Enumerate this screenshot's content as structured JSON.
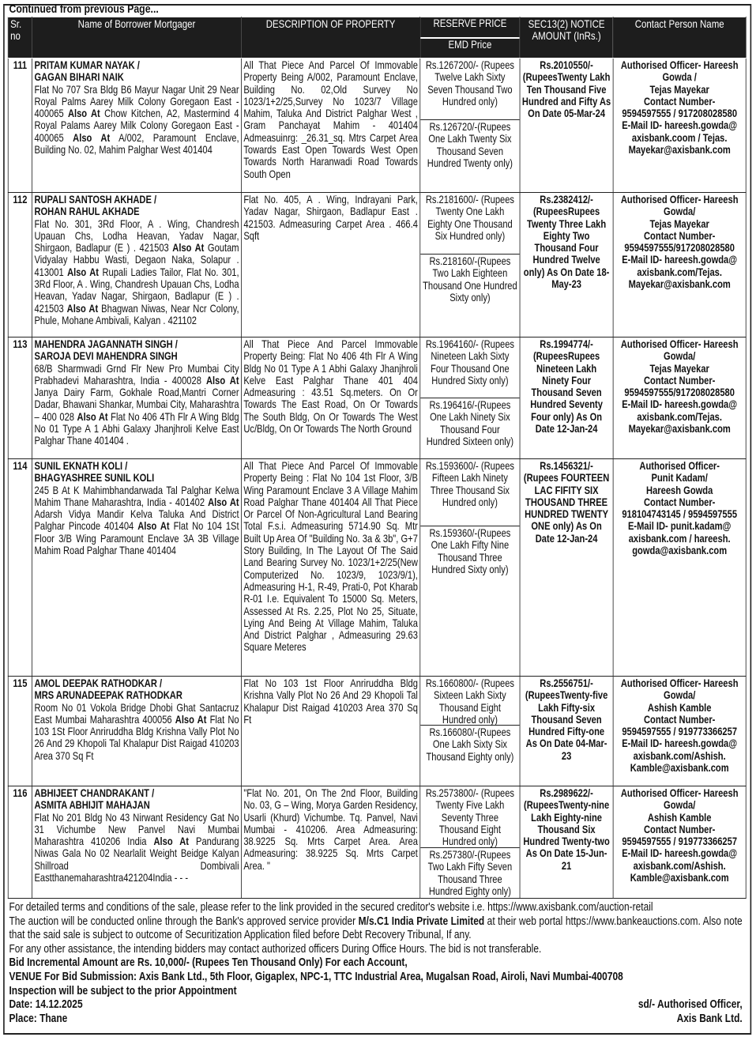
{
  "heading": "Continued from previous Page...",
  "columns": {
    "sr": "Sr. no",
    "name": "Name of Borrower Mortgager",
    "description": "DESCRIPTION OF PROPERTY",
    "reserve": "RESERVE PRICE",
    "emd": "EMD Price",
    "notice": "SEC13(2) NOTICE AMOUNT (InRs.)",
    "contact": "Contact Person Name"
  },
  "rows": [
    {
      "sr": "111",
      "names": [
        "PRITAM KUMAR  NAYAK /",
        "GAGAN BIHARI NAIK"
      ],
      "address": [
        {
          "t": "Flat No 707 Sra Bldg B6 Mayur Nagar Unit 29 Near Royal Palms Aarey Milk Colony Goregaon East - 400065 "
        },
        {
          "t": "Also At",
          "b": true
        },
        {
          "t": " Chow Kitchen, A2, Mastermind 4 Royal Palams Aarey Milk Colony Goregaon East - 400065 "
        },
        {
          "t": "Also At",
          "b": true
        },
        {
          "t": " A/002, Paramount Enclave, Building No. 02, Mahim Palghar West 401404"
        }
      ],
      "description": "All That Piece And Parcel Of Immovable Property Being A/002, Paramount Enclave, Building No. 02,Old Survey No 1023/1+2/25,Survey No 1023/7 Village Mahim, Taluka And District Palghar West , Gram Panchayat Mahim - 401404 Admeasuinrg: _26.31_sq. Mtrs Carpet Area Towards East Open Towards West Open Towards North Haranwadi Road Towards South Open",
      "reserve": "Rs.1267200/- (Rupees Twelve Lakh Sixty Seven Thousand Two Hundred only)",
      "emd": "Rs.126720/-(Rupees One Lakh Twenty Six Thousand Seven Hundred Twenty only)",
      "notice": "Rs.2010550/- (RupeesTwenty Lakh Ten Thousand Five Hundred and Fifty As On Date 05-Mar-24",
      "contact": [
        "Authorised Officer- Hareesh",
        "Gowda /",
        "Tejas Mayekar",
        "Contact Number-",
        "9594597555 / 917208028580",
        "E-Mail ID- hareesh.gowda@",
        "axisbank.coom / Tejas.",
        "Mayekar@axisbank.com"
      ]
    },
    {
      "sr": "112",
      "names": [
        "RUPALI SANTOSH AKHADE /",
        "ROHAN RAHUL AKHADE"
      ],
      "address": [
        {
          "t": "Flat No. 301, 3Rd Floor, A . Wing, Chandresh Upauan Chs, Lodha Heavan, Yadav Nagar, Shirgaon, Badlapur (E ) . 421503 "
        },
        {
          "t": "Also At",
          "b": true
        },
        {
          "t": " Goutam Vidyalay Habbu Wasti, Degaon Naka, Solapur . 413001 "
        },
        {
          "t": "Also At",
          "b": true
        },
        {
          "t": " Rupali Ladies Tailor, Flat No. 301, 3Rd Floor, A . Wing, Chandresh Upauan Chs, Lodha Heavan, Yadav Nagar, Shirgaon, Badlapur (E ) . 421503 "
        },
        {
          "t": "Also At",
          "b": true
        },
        {
          "t": " Bhagwan Niwas, Near Ncr Colony, Phule, Mohane Ambivali, Kalyan . 421102"
        }
      ],
      "description": "Flat No. 405, A . Wing, Indrayani Park, Yadav Nagar, Shirgaon, Badlapur East . 421503. Admeasuring Carpet Area . 466.4 Sqft",
      "reserve": "Rs.2181600/- (Rupees Twenty One Lakh Eighty One Thousand Six Hundred only)",
      "emd": "Rs.218160/-(Rupees Two Lakh Eighteen Thousand One Hundred Sixty only)",
      "notice": "Rs.2382412/- (RupeesRupees Twenty Three Lakh Eighty Two Thousand Four Hundred Twelve only) As On Date 18-May-23",
      "contact": [
        "Authorised Officer- Hareesh",
        "Gowda/",
        "Tejas Mayekar",
        "Contact Number-",
        "9594597555/917208028580",
        "E-Mail ID- hareesh.gowda@",
        "axisbank.com/Tejas.",
        "Mayekar@axisbank.com"
      ]
    },
    {
      "sr": "113",
      "names": [
        "MAHENDRA JAGANNATH SINGH /",
        "SAROJA DEVI MAHENDRA SINGH"
      ],
      "address": [
        {
          "t": " 68/B Sharmwadi Grnd Flr New Pro Mumbai City Prabhadevi Maharashtra, India - 400028 "
        },
        {
          "t": "Also At",
          "b": true
        },
        {
          "t": " Janya Dairy Farm, Gokhale Road,Mantri Corner Dadar, Bhawani Shankar, Mumbai City, Maharashtra – 400 028 "
        },
        {
          "t": "Also At",
          "b": true
        },
        {
          "t": " Flat No 406 4Th Flr A Wing Bldg No 01 Type A 1 Abhi Galaxy Jhanjhroli Kelve East Palghar Thane 401404 ."
        }
      ],
      "description": "All That Piece And Parcel Immovable Property Being: Flat No 406 4th Flr A Wing Bldg No 01 Type A 1 Abhi Galaxy Jhanjhroli Kelve East Palghar Thane 401 404 Admeasuring : 43.51 Sq.meters. On Or Towards The East Road, On Or Towards The South Bldg, On Or Towards The West Uc/Bldg, On Or Towards The North Ground",
      "reserve": "Rs.1964160/- (Rupees Nineteen Lakh Sixty Four Thousand One Hundred Sixty only)",
      "emd": "Rs.196416/-(Rupees One Lakh Ninety Six Thousand Four Hundred Sixteen only)",
      "notice": "Rs.1994774/- (RupeesRupees Nineteen Lakh Ninety Four Thousand Seven Hundred Seventy Four only) As On Date 12-Jan-24",
      "contact": [
        "Authorised Officer- Hareesh",
        "Gowda/",
        "Tejas Mayekar",
        "Contact Number-",
        "9594597555/917208028580",
        "E-Mail ID- hareesh.gowda@",
        "axisbank.com/Tejas.",
        "Mayekar@axisbank.com"
      ]
    },
    {
      "sr": "114",
      "names": [
        "SUNIL EKNATH KOLI /",
        "BHAGYASHREE SUNIL KOLI"
      ],
      "address": [
        {
          "t": "245 B At K Mahimbhandarwada Tal Palghar Kelwa Mahim Thane Maharashtra, India - 401402 "
        },
        {
          "t": "Also At",
          "b": true
        },
        {
          "t": " Adarsh Vidya Mandir Kelva Taluka And District Palghar Pincode 401404 "
        },
        {
          "t": "Also At",
          "b": true
        },
        {
          "t": " Flat No 104 1St Floor 3/B Wing Paramount Enclave 3A 3B Village Mahim Road Palghar Thane 401404"
        }
      ],
      "description": "All That Piece And Parcel Of Immovable Property Being : Flat No 104 1st Floor, 3/B Wing Paramount Enclave 3 A Village Mahim Road Palghar Thane 401404  All That Piece Or Parcel Of Non-Agricultural Land Bearing Total F.s.i. Admeasuring 5714.90 Sq. Mtr Built Up Area Of \"Building No. 3a & 3b\", G+7 Story Building, In The Layout Of The Said Land Bearing Survey No. 1023/1+2/25(New Computerized No. 1023/9, 1023/9/1), Admeasuring H-1, R-49, Prati-0, Pot Kharab R-01 I.e. Equivalent To 15000 Sq. Meters, Assessed At Rs. 2.25,  Plot No 25, Situate, Lying And Being At Village Mahim, Taluka And District Palghar , Admeasuring 29.63 Square Meteres",
      "reserve": "Rs.1593600/- (Rupees Fifteen Lakh Ninety Three Thousand Six Hundred only)",
      "emd": "Rs.159360/-(Rupees One Lakh Fifty Nine Thousand Three Hundred Sixty only)",
      "notice": "Rs.1456321/- (Rupees FOURTEEN LAC FIFITY SIX THOUSAND THREE HUNDRED TWENTY ONE only) As On Date 12-Jan-24",
      "contact": [
        "Authorised Officer-",
        "Punit Kadam/",
        "Hareesh Gowda",
        "Contact Number-",
        "918104743145 / 9594597555",
        "E-Mail ID- punit.kadam@",
        "axisbank.com / hareesh.",
        "gowda@axisbank.com"
      ]
    },
    {
      "sr": "115",
      "names": [
        "AMOL DEEPAK RATHODKAR /",
        "MRS ARUNADEEPAK RATHODKAR"
      ],
      "address": [
        {
          "t": "Room No 01 Vokola Bridge Dhobi Ghat Santacruz East Mumbai Maharashtra 400056 "
        },
        {
          "t": "Also At",
          "b": true
        },
        {
          "t": " Flat No 103 1St Floor Anriruddha Bldg Krishna Vally Plot No 26 And 29 Khopoli Tal Khalapur Dist Raigad 410203 Area 370 Sq Ft"
        }
      ],
      "description": "Flat No 103 1st Floor Anriruddha Bldg Krishna Vally Plot No 26 And 29 Khopoli Tal Khalapur Dist Raigad 410203 Area 370 Sq Ft",
      "reserve": "Rs.1660800/- (Rupees Sixteen Lakh Sixty Thousand Eight Hundred only)",
      "emd": "Rs.166080/-(Rupees One Lakh Sixty Six Thousand Eighty only)",
      "notice": "Rs.2556751/- (RupeesTwenty-five Lakh Fifty-six Thousand Seven Hundred Fifty-one As On Date 04-Mar-23",
      "contact": [
        "Authorised Officer- Hareesh",
        "Gowda/",
        "Ashish Kamble",
        "Contact Number-",
        "9594597555 / 919773366257",
        "E-Mail ID- hareesh.gowda@",
        "axisbank.com/Ashish.",
        "Kamble@axisbank.com"
      ]
    },
    {
      "sr": "116",
      "names": [
        "ABHIJEET CHANDRAKANT /",
        "ASMITA ABHIJIT MAHAJAN"
      ],
      "address": [
        {
          "t": "Flat No 201 Bldg No 43 Nirwant Residency Gat No 31 Vichumbe New Panvel Navi Mumbai Maharashtra 410206 India "
        },
        {
          "t": "Also At",
          "b": true
        },
        {
          "t": " Pandurang Niwas Gala No 02 Nearlalit Weight Beidge Kalyan Shillroad Dombivali Eastthanemaharashtra421204India - - -"
        }
      ],
      "description": "\"Flat No. 201, On The 2nd Floor, Building No. 03, G – Wing, Morya Garden Residency, Usarli (Khurd) Vichumbe. Tq. Panvel, Navi Mumbai - 410206. Area Admeasuring: 38.9225 Sq. Mrts Carpet Area. Area Admeasuring: 38.9225 Sq. Mrts Carpet Area.        \"",
      "reserve": "Rs.2573800/- (Rupees Twenty Five Lakh Seventy Three Thousand Eight Hundred only)",
      "emd": "Rs.257380/-(Rupees Two Lakh Fifty Seven Thousand Three Hundred Eighty only)",
      "notice": "Rs.2989622/- (RupeesTwenty-nine Lakh Eighty-nine Thousand Six Hundred Twenty-two As On Date 15-Jun-21",
      "contact": [
        "Authorised Officer- Hareesh",
        "Gowda/",
        "Ashish Kamble",
        "Contact Number-",
        "9594597555 / 919773366257",
        "E-Mail ID- hareesh.gowda@",
        "axisbank.com/Ashish.",
        "Kamble@axisbank.com"
      ]
    }
  ],
  "notes": {
    "terms": "For detailed terms and conditions of the sale, please refer to the link provided in the secured creditor's website i.e. https://www.axisbank.com/auction-retail",
    "auction_pre": "The auction will be conducted online through the Bank's approved service provider ",
    "auction_provider": "M/s.C1 India Private Limited",
    "auction_post": " at their web portal https://www.bankeauctions.com. Also note that the said sale is subject to outcome of Securitization Application filed before Debt Recovery Tribunal, If any.",
    "assistance": "For any other assistance, the intending bidders may contact authorized officers During Office Hours. The bid is not transferable.",
    "bid_increment": "Bid Incremental Amount are Rs. 10,000/- (Rupees Ten Thousand Only) For each Account,",
    "venue": "VENUE For Bid Submission: Axis Bank Ltd., 5th Floor, Gigaplex, NPC-1, TTC Industrial Area, Mugalsan Road, Airoli, Navi Mumbai-400708",
    "inspection": "Inspection will be subject to the prior Appointment",
    "date": "Date: 14.12.2025",
    "signatory": "sd/- Authorised Officer,",
    "place": "Place: Thane",
    "bank": "Axis Bank Ltd."
  }
}
